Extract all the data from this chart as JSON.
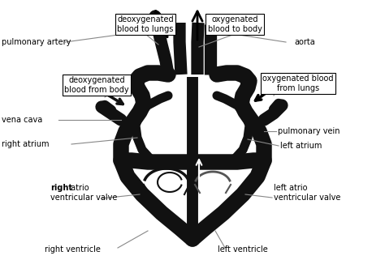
{
  "bg_color": "#ffffff",
  "heart_color": "#111111",
  "line_color": "#aaaaaa",
  "text_color": "#000000",
  "fig_width": 4.74,
  "fig_height": 3.21,
  "dpi": 100,
  "labels": {
    "pulmonary_artery": "pulmonary artery",
    "deoxy_to_lungs": "deoxygenated\nblood to lungs",
    "oxy_to_body": "oxygenated\nblood to body",
    "aorta": "aorta",
    "deoxy_from_body": "deoxygenated\nblood from body",
    "oxy_from_lungs": "oxygenated blood\nfrom lungs",
    "vena_cava": "vena cava",
    "pulmonary_vein": "pulmonary vein",
    "right_atrium": "right atrium",
    "left_atrium": "left atrium",
    "right_av_valve": "right atrio\nventricular valve",
    "left_av_valve": "left atrio\nventricular valve",
    "right_ventricle": "right ventricle",
    "left_ventricle": "left ventricle"
  }
}
